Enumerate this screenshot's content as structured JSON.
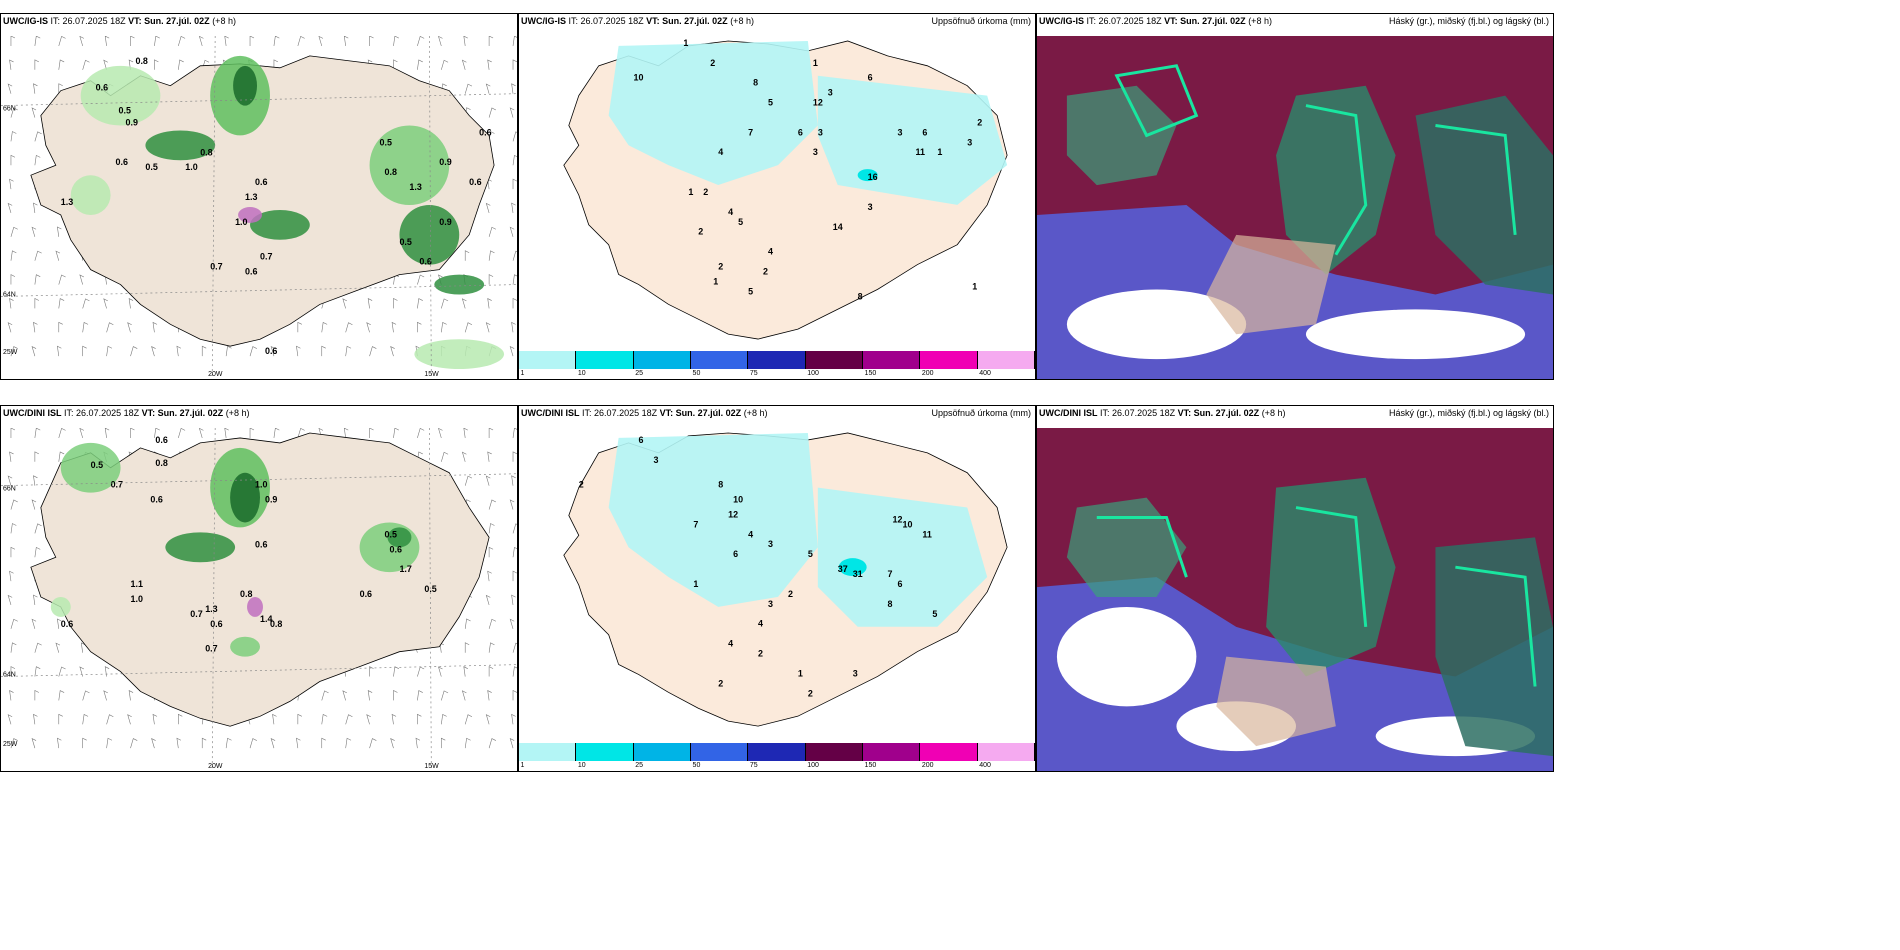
{
  "panels": [
    {
      "model": "UWC/IG-IS",
      "it_label": "IT:",
      "it": "26.07.2025 18Z",
      "vt_label": "VT:",
      "vt": "Sun. 27.júl. 02Z",
      "lead": "(+8 h)",
      "right_title": ""
    },
    {
      "model": "UWC/IG-IS",
      "it_label": "IT:",
      "it": "26.07.2025 18Z",
      "vt_label": "VT:",
      "vt": "Sun. 27.júl. 02Z",
      "lead": "(+8 h)",
      "right_title": "Uppsöfnuð úrkoma (mm)"
    },
    {
      "model": "UWC/IG-IS",
      "it_label": "IT:",
      "it": "26.07.2025 18Z",
      "vt_label": "VT:",
      "vt": "Sun. 27.júl. 02Z",
      "lead": "(+8 h)",
      "right_title": "Háský (gr.), miðský (fj.bl.) og lágský (bl.)"
    },
    {
      "model": "UWC/DINI ISL",
      "it_label": "IT:",
      "it": "26.07.2025 18Z",
      "vt_label": "VT:",
      "vt": "Sun. 27.júl. 02Z",
      "lead": "(+8 h)",
      "right_title": ""
    },
    {
      "model": "UWC/DINI ISL",
      "it_label": "IT:",
      "it": "26.07.2025 18Z",
      "vt_label": "VT:",
      "vt": "Sun. 27.júl. 02Z",
      "lead": "(+8 h)",
      "right_title": "Uppsöfnuð úrkoma (mm)"
    },
    {
      "model": "UWC/DINI ISL",
      "it_label": "IT:",
      "it": "26.07.2025 18Z",
      "vt_label": "VT:",
      "vt": "Sun. 27.júl. 02Z",
      "lead": "(+8 h)",
      "right_title": "Háský (gr.), miðský (fj.bl.) og lágský (bl.)"
    }
  ],
  "coords": {
    "lat_66": "66N",
    "lat_64": "64N",
    "lon_20": "20W",
    "lon_15": "15W",
    "lon_25": "25W"
  },
  "colorbar": {
    "ticks": [
      "1",
      "10",
      "25",
      "50",
      "75",
      "100",
      "150",
      "200",
      "400"
    ],
    "colors": [
      "#b3f5f5",
      "#00e6e6",
      "#00b4e6",
      "#3264e6",
      "#1e28b4",
      "#640046",
      "#a0008c",
      "#f000b4",
      "#f5aaf0"
    ]
  },
  "labels_top_left": [
    "0.8",
    "0.6",
    "0.5",
    "0.9",
    "0.6",
    "0.5",
    "1.0",
    "0.8",
    "1.3",
    "0.6",
    "1.0",
    "0.7",
    "0.6",
    "0.5",
    "0.8",
    "1.3",
    "0.9",
    "0.6",
    "0.6",
    "0.9",
    "0.5",
    "0.6",
    "1.3",
    "0.7",
    "0.6"
  ],
  "labels_bottom_left": [
    "0.6",
    "0.8",
    "0.5",
    "0.7",
    "0.6",
    "1.0",
    "0.9",
    "0.6",
    "0.8",
    "1.3",
    "0.7",
    "0.5",
    "0.6",
    "1.7",
    "0.5",
    "0.6",
    "1.4",
    "0.8",
    "0.7",
    "0.6",
    "1.1",
    "1.0",
    "0.6"
  ],
  "labels_top_mid": [
    "1",
    "2",
    "10",
    "8",
    "3",
    "1",
    "6",
    "5",
    "7",
    "4",
    "12",
    "3",
    "6",
    "2",
    "1",
    "4",
    "5",
    "3",
    "16",
    "11",
    "6",
    "3",
    "2",
    "4",
    "14",
    "8",
    "2",
    "1",
    "5",
    "2",
    "3",
    "1",
    "2",
    "1",
    "3"
  ],
  "labels_bottom_mid": [
    "6",
    "3",
    "2",
    "10",
    "12",
    "8",
    "7",
    "4",
    "6",
    "3",
    "5",
    "2",
    "12",
    "10",
    "11",
    "37",
    "31",
    "7",
    "6",
    "8",
    "3",
    "4",
    "2",
    "5",
    "1",
    "4",
    "2",
    "3",
    "1",
    "2"
  ]
}
